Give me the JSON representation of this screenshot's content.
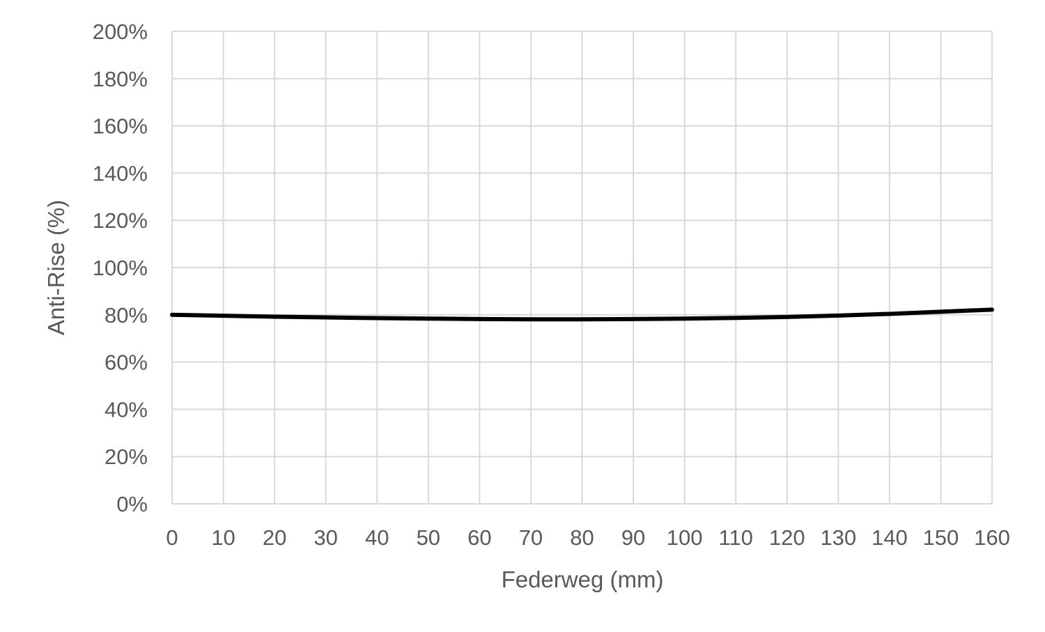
{
  "chart_data": {
    "type": "line",
    "title": "",
    "xlabel": "Federweg (mm)",
    "ylabel": "Anti-Rise (%)",
    "xlim": [
      0,
      160
    ],
    "ylim": [
      0,
      200
    ],
    "x_ticks": [
      0,
      10,
      20,
      30,
      40,
      50,
      60,
      70,
      80,
      90,
      100,
      110,
      120,
      130,
      140,
      150,
      160
    ],
    "x_tick_labels": [
      "0",
      "10",
      "20",
      "30",
      "40",
      "50",
      "60",
      "70",
      "80",
      "90",
      "100",
      "110",
      "120",
      "130",
      "140",
      "150",
      "160"
    ],
    "y_ticks": [
      0,
      20,
      40,
      60,
      80,
      100,
      120,
      140,
      160,
      180,
      200
    ],
    "y_tick_labels": [
      "0%",
      "20%",
      "40%",
      "60%",
      "80%",
      "100%",
      "120%",
      "140%",
      "160%",
      "180%",
      "200%"
    ],
    "grid": true,
    "legend": "none",
    "series": [
      {
        "color": "#000000",
        "x": [
          0,
          10,
          20,
          30,
          40,
          50,
          60,
          70,
          80,
          90,
          100,
          110,
          120,
          130,
          140,
          150,
          160
        ],
        "y": [
          80.0,
          79.6,
          79.2,
          78.9,
          78.6,
          78.4,
          78.2,
          78.1,
          78.1,
          78.2,
          78.4,
          78.7,
          79.1,
          79.7,
          80.4,
          81.3,
          82.2
        ]
      }
    ]
  }
}
